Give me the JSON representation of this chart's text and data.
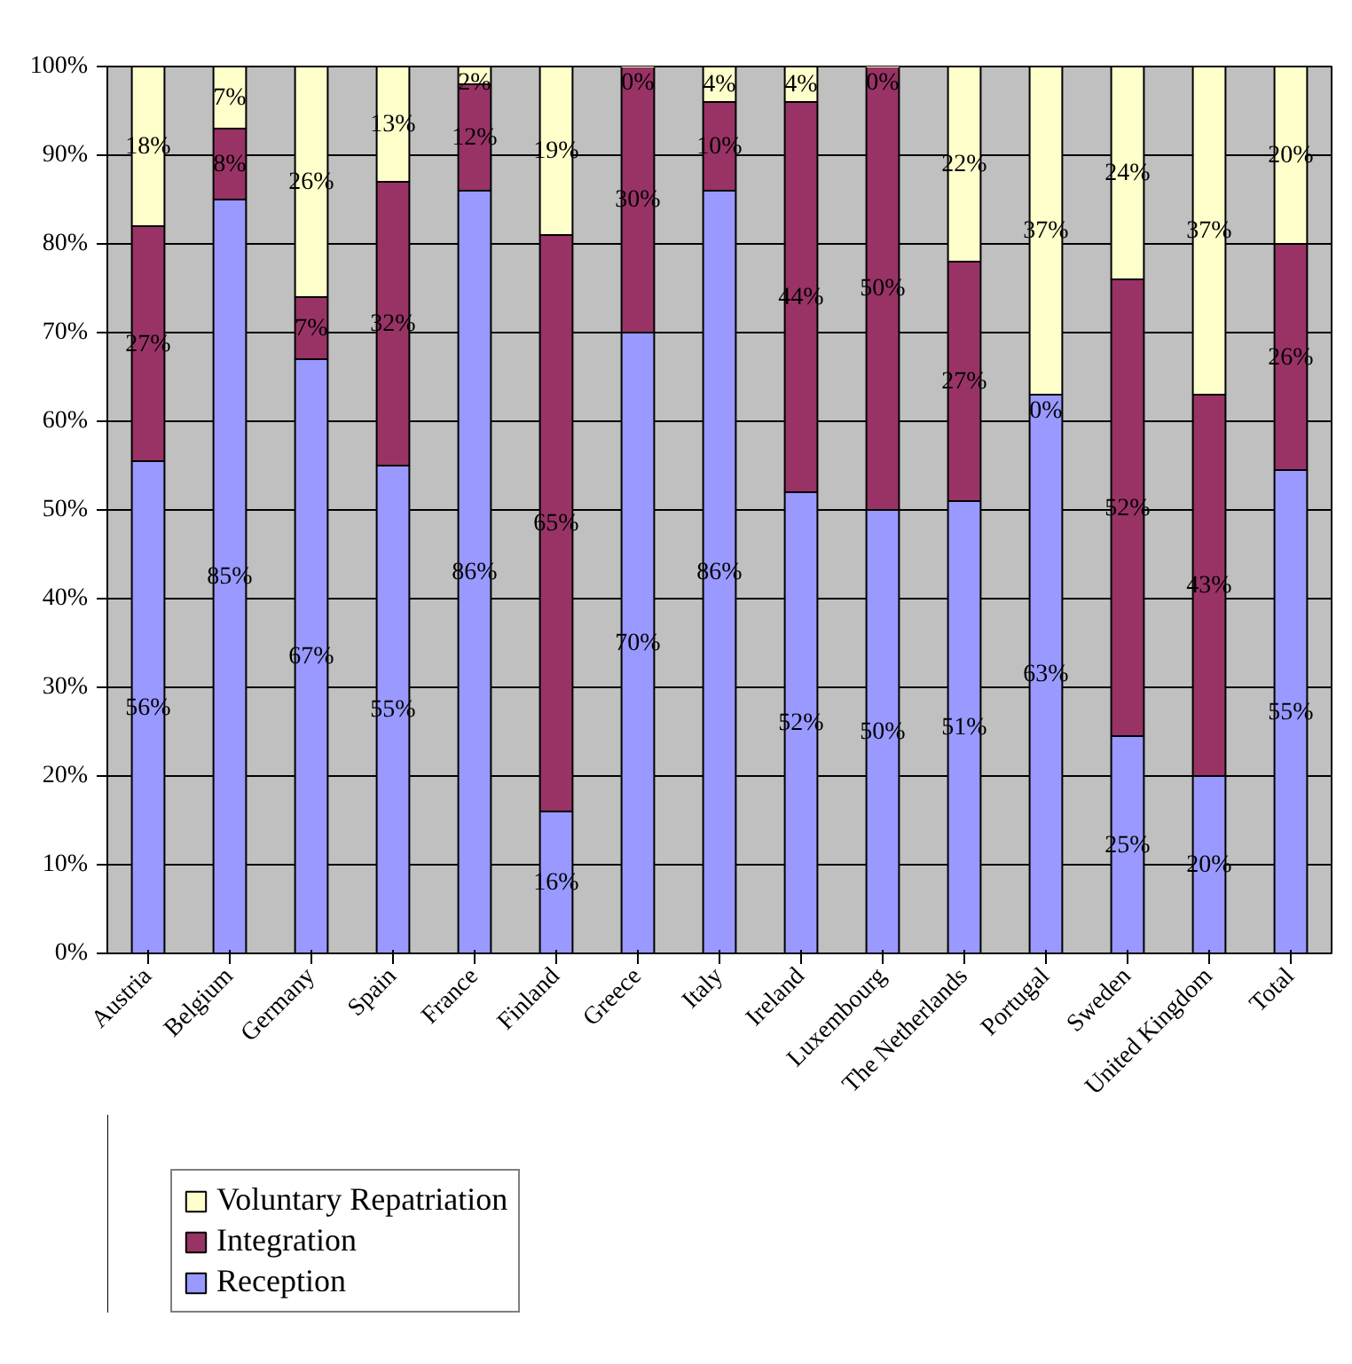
{
  "chart_data": {
    "type": "bar",
    "stacked": true,
    "categories": [
      "Austria",
      "Belgium",
      "Germany",
      "Spain",
      "France",
      "Finland",
      "Greece",
      "Italy",
      "Ireland",
      "Luxembourg",
      "The Netherlands",
      "Portugal",
      "Sweden",
      "United Kingdom",
      "Total"
    ],
    "series": [
      {
        "name": "Reception",
        "color": "#9999ff",
        "values": [
          55.5,
          85,
          67,
          55,
          86,
          16,
          70,
          86,
          52,
          50,
          51,
          63,
          24.5,
          20,
          54.5
        ],
        "value_labels": [
          "56%",
          "85%",
          "67%",
          "55%",
          "86%",
          "16%",
          "70%",
          "86%",
          "52%",
          "50%",
          "51%",
          "63%",
          "25%",
          "20%",
          "55%"
        ]
      },
      {
        "name": "Integration",
        "color": "#993366",
        "values": [
          26.5,
          8,
          7,
          32,
          12,
          65,
          30,
          10,
          44,
          50,
          27,
          0,
          51.5,
          43,
          25.5
        ],
        "value_labels": [
          "27%",
          "8%",
          "7%",
          "32%",
          "12%",
          "65%",
          "30%",
          "10%",
          "44%",
          "50%",
          "27%",
          "0%",
          "52%",
          "43%",
          "26%"
        ]
      },
      {
        "name": "Voluntary Repatriation",
        "color": "#ffffcc",
        "values": [
          18,
          7,
          26,
          13,
          2,
          19,
          0,
          4,
          4,
          0,
          22,
          37,
          24,
          37,
          20
        ],
        "value_labels": [
          "18%",
          "7%",
          "26%",
          "13%",
          "2%",
          "19%",
          "0%",
          "4%",
          "4%",
          "0%",
          "22%",
          "37%",
          "24%",
          "37%",
          "20%"
        ]
      }
    ],
    "ylim": [
      0,
      100
    ],
    "yticks": [
      {
        "value": 0,
        "label": "0%"
      },
      {
        "value": 10,
        "label": "10%"
      },
      {
        "value": 20,
        "label": "20%"
      },
      {
        "value": 30,
        "label": "30%"
      },
      {
        "value": 40,
        "label": "40%"
      },
      {
        "value": 50,
        "label": "50%"
      },
      {
        "value": 60,
        "label": "60%"
      },
      {
        "value": 70,
        "label": "70%"
      },
      {
        "value": 80,
        "label": "80%"
      },
      {
        "value": 90,
        "label": "90%"
      },
      {
        "value": 100,
        "label": "100%"
      }
    ],
    "grid": "y",
    "legend": "bottom left"
  }
}
